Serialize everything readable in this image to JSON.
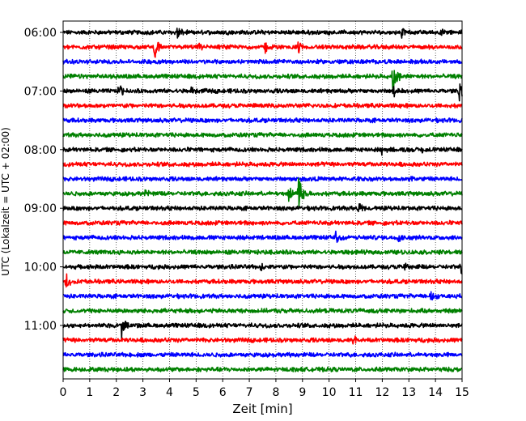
{
  "chart_data": {
    "type": "line",
    "subtype": "helicorder",
    "xlabel": "Zeit  [min]",
    "ylabel": "UTC (Lokalzeit = UTC + 02:00)",
    "xlim": [
      0,
      15
    ],
    "x_ticks": [
      "0",
      "1",
      "2",
      "3",
      "4",
      "5",
      "6",
      "7",
      "8",
      "9",
      "10",
      "11",
      "12",
      "13",
      "14",
      "15"
    ],
    "y_tick_labels": [
      "06:00",
      "07:00",
      "08:00",
      "09:00",
      "10:00",
      "11:00"
    ],
    "grid": "vertical dotted",
    "color_cycle": [
      "#000000",
      "#ff0000",
      "#0000ff",
      "#008000"
    ],
    "rows": [
      {
        "start": "06:00",
        "events": [
          {
            "t": 4.3,
            "amp": 0.5
          },
          {
            "t": 12.7,
            "amp": 0.45
          },
          {
            "t": 14.2,
            "amp": 0.35
          }
        ]
      },
      {
        "start": "06:15",
        "events": [
          {
            "t": 3.45,
            "amp": 0.9
          },
          {
            "t": 5.1,
            "amp": 0.4
          },
          {
            "t": 7.6,
            "amp": 0.5
          },
          {
            "t": 8.85,
            "amp": 0.45
          }
        ]
      },
      {
        "start": "06:30",
        "events": []
      },
      {
        "start": "06:45",
        "events": [
          {
            "t": 12.4,
            "amp": 1.2
          }
        ]
      },
      {
        "start": "07:00",
        "events": [
          {
            "t": 2.1,
            "amp": 0.5
          },
          {
            "t": 4.8,
            "amp": 0.35
          },
          {
            "t": 12.4,
            "amp": 0.45
          },
          {
            "t": 14.9,
            "amp": 0.6
          }
        ]
      },
      {
        "start": "07:15",
        "events": []
      },
      {
        "start": "07:30",
        "events": []
      },
      {
        "start": "07:45",
        "events": []
      },
      {
        "start": "08:00",
        "events": [
          {
            "t": 12.0,
            "amp": 0.35
          },
          {
            "t": 13.5,
            "amp": 0.3
          }
        ]
      },
      {
        "start": "08:15",
        "events": []
      },
      {
        "start": "08:30",
        "events": [
          {
            "t": 13.0,
            "amp": 0.25
          }
        ]
      },
      {
        "start": "08:45",
        "events": [
          {
            "t": 3.1,
            "amp": 0.35
          },
          {
            "t": 8.5,
            "amp": 0.6
          },
          {
            "t": 8.85,
            "amp": 1.3
          }
        ]
      },
      {
        "start": "09:00",
        "events": [
          {
            "t": 11.1,
            "amp": 0.4
          }
        ]
      },
      {
        "start": "09:15",
        "events": []
      },
      {
        "start": "09:30",
        "events": [
          {
            "t": 10.25,
            "amp": 0.6
          },
          {
            "t": 12.6,
            "amp": 0.3
          }
        ]
      },
      {
        "start": "09:45",
        "events": []
      },
      {
        "start": "10:00",
        "events": [
          {
            "t": 7.4,
            "amp": 0.3
          },
          {
            "t": 12.8,
            "amp": 0.35
          },
          {
            "t": 14.95,
            "amp": 0.9
          }
        ]
      },
      {
        "start": "10:15",
        "events": [
          {
            "t": 0.1,
            "amp": 0.6
          }
        ]
      },
      {
        "start": "10:30",
        "events": [
          {
            "t": 13.8,
            "amp": 0.35
          }
        ]
      },
      {
        "start": "10:45",
        "events": []
      },
      {
        "start": "11:00",
        "events": [
          {
            "t": 2.2,
            "amp": 0.9
          }
        ]
      },
      {
        "start": "11:15",
        "events": [
          {
            "t": 10.9,
            "amp": 0.3
          }
        ]
      },
      {
        "start": "11:30",
        "events": []
      },
      {
        "start": "11:45",
        "events": []
      }
    ]
  }
}
